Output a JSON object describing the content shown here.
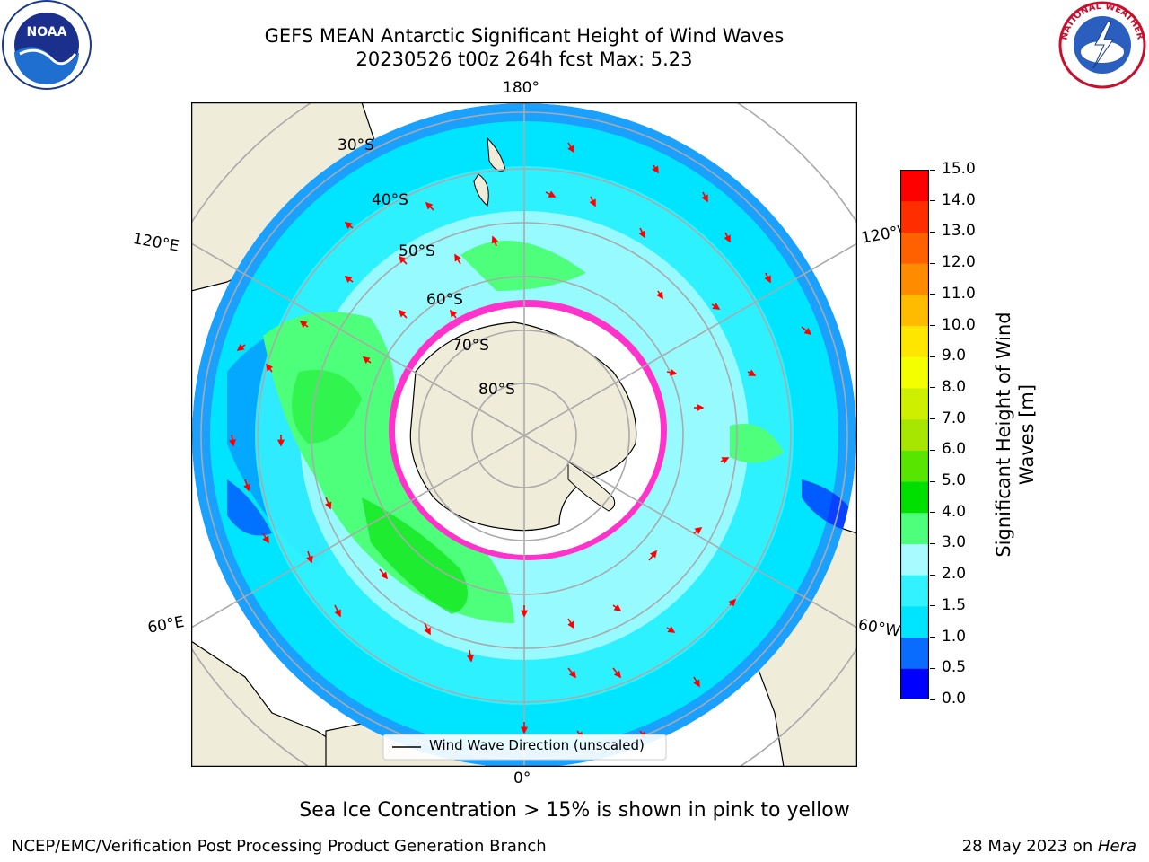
{
  "header": {
    "title_line1": "GEFS MEAN Antarctic Significant Height of Wind Waves",
    "title_line2": "20230526 t00z 264h fcst   Max: 5.23"
  },
  "logos": {
    "left": "NATIONAL OCEANIC AND ATMOSPHERIC ADMINISTRATION · U.S. DEPARTMENT OF COMMERCE · NOAA",
    "right": "NATIONAL WEATHER SERVICE"
  },
  "map": {
    "longitude_labels": {
      "top": "180°",
      "bottom": "0°",
      "upper_left": "120°E",
      "upper_right": "120°W",
      "lower_left": "60°E",
      "lower_right": "60°W"
    },
    "latitude_labels": [
      "30°S",
      "40°S",
      "50°S",
      "60°S",
      "70°S",
      "80°S"
    ],
    "legend_label": "Wind Wave Direction (unscaled)"
  },
  "colorbar": {
    "label_line1": "Significant Height of Wind",
    "label_line2": "Waves [m]",
    "ticks": [
      "0.0",
      "0.5",
      "1.0",
      "1.5",
      "2.0",
      "3.0",
      "4.0",
      "5.0",
      "6.0",
      "7.0",
      "8.0",
      "9.0",
      "10.0",
      "11.0",
      "12.0",
      "13.0",
      "14.0",
      "15.0"
    ],
    "colors": [
      "#0000ff",
      "#0a6cff",
      "#00e5ff",
      "#33f2ff",
      "#a8fbff",
      "#4dff7a",
      "#00e000",
      "#58e600",
      "#a6e600",
      "#cef000",
      "#f4ff00",
      "#ffe600",
      "#ffbb00",
      "#ff8c00",
      "#ff6000",
      "#ff2d00",
      "#ff0000"
    ]
  },
  "caption": "Sea Ice Concentration > 15% is shown in pink to yellow",
  "footer": {
    "left": "NCEP/EMC/Verification Post Processing Product Generation Branch",
    "right_date": "28 May 2023 on ",
    "right_host": "Hera"
  }
}
